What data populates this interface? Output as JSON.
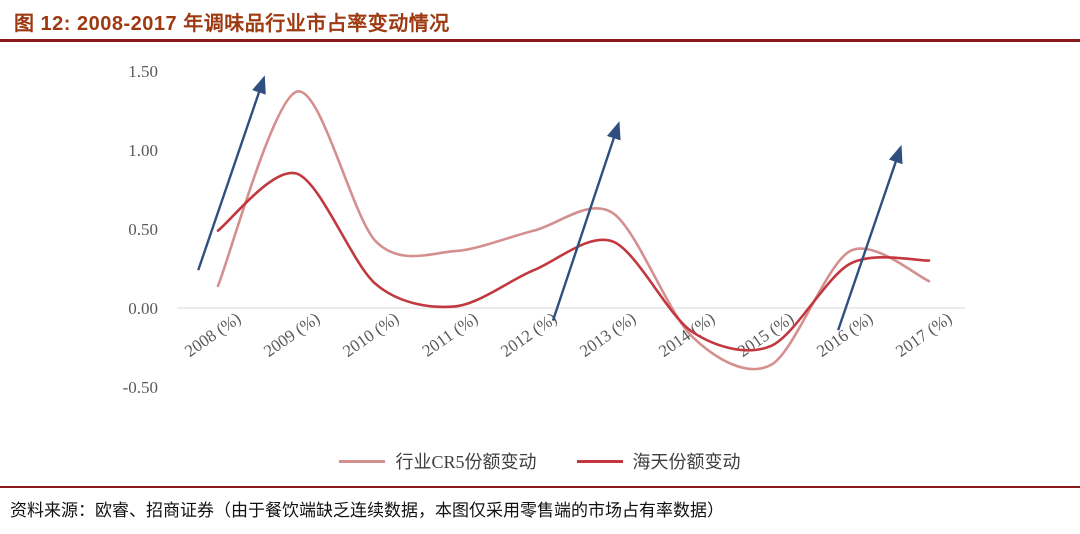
{
  "title": {
    "text": "图 12: 2008-2017 年调味品行业市占率变动情况"
  },
  "source": {
    "text": "资料来源：欧睿、招商证券（由于餐饮端缺乏连续数据，本图仅采用零售端的市场占有率数据）"
  },
  "colors": {
    "title": "#9E3A12",
    "rule": "#8B1A1A",
    "axis_text": "#595959",
    "grid_line": "#D9D9D9",
    "legend_text": "#3F3F3F",
    "source_text": "#111111",
    "background": "#FFFFFF"
  },
  "chart_data": {
    "type": "line",
    "categories": [
      "2008 (%)",
      "2009 (%)",
      "2010 (%)",
      "2011 (%)",
      "2012 (%)",
      "2013 (%)",
      "2014 (%)",
      "2015 (%)",
      "2016 (%)",
      "2017 (%)"
    ],
    "x_years": [
      2008,
      2009,
      2010,
      2011,
      2012,
      2013,
      2014,
      2015,
      2016,
      2017
    ],
    "yticks": {
      "labels": [
        "1.50",
        "1.00",
        "0.50",
        "0.00",
        "-0.50"
      ],
      "values": [
        1.5,
        1.0,
        0.5,
        0.0,
        -0.5
      ]
    },
    "ylim": [
      -0.5,
      1.5
    ],
    "grid": "zero-baseline-only",
    "legend_position": "bottom-center",
    "series": [
      {
        "name": "行业CR5份额变动",
        "color": "#D4908F",
        "values": [
          0.14,
          1.37,
          0.42,
          0.36,
          0.49,
          0.6,
          -0.18,
          -0.36,
          0.36,
          0.17
        ]
      },
      {
        "name": "海天份额变动",
        "color": "#C2383F",
        "values": [
          0.49,
          0.85,
          0.15,
          0.01,
          0.24,
          0.42,
          -0.15,
          -0.24,
          0.28,
          0.3
        ]
      }
    ],
    "annotations": {
      "arrow_color": "#2F4F80",
      "arrows": [
        {
          "x1": 2007.75,
          "y1": 0.24,
          "x2": 2008.57,
          "y2": 1.44
        },
        {
          "x1": 2012.24,
          "y1": -0.08,
          "x2": 2013.06,
          "y2": 1.15
        },
        {
          "x1": 2015.85,
          "y1": -0.14,
          "x2": 2016.63,
          "y2": 1.0
        }
      ]
    }
  }
}
